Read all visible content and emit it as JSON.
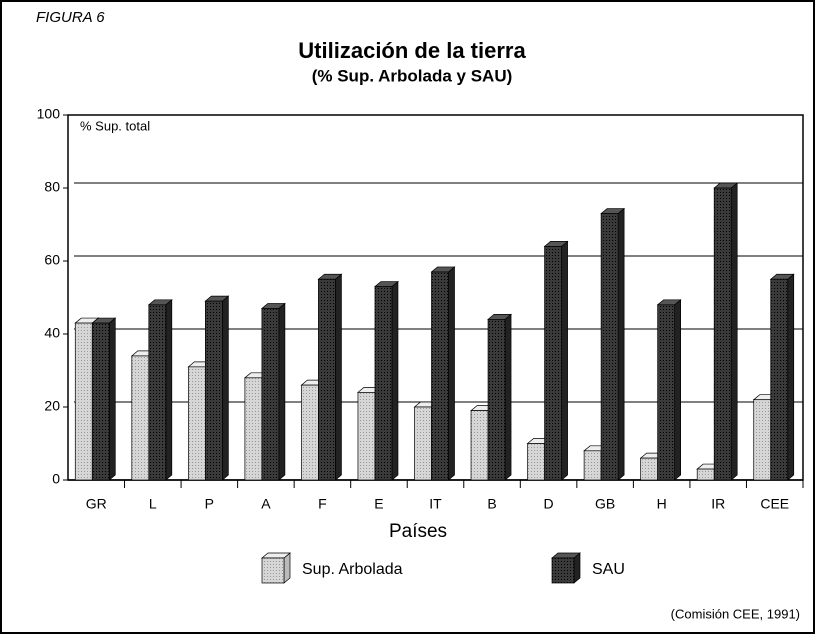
{
  "chart_data": {
    "type": "bar",
    "label": "FIGURA 6",
    "title": "Utilización de la tierra",
    "subtitle": "(% Sup. Arbolada y SAU)",
    "y_axis_label": "% Sup. total",
    "x_axis_label": "Países",
    "source": "(Comisión CEE, 1991)",
    "categories": [
      "GR",
      "L",
      "P",
      "A",
      "F",
      "E",
      "IT",
      "B",
      "D",
      "GB",
      "H",
      "IR",
      "CEE"
    ],
    "series": [
      {
        "name": "Sup. Arbolada",
        "color": "#d6d6d6",
        "values": [
          43,
          34,
          31,
          28,
          26,
          24,
          20,
          19,
          10,
          8,
          6,
          3,
          22
        ]
      },
      {
        "name": "SAU",
        "color": "#3a3a3a",
        "values": [
          43,
          48,
          49,
          47,
          55,
          53,
          57,
          44,
          64,
          73,
          48,
          80,
          55
        ]
      }
    ],
    "ylim": [
      0,
      100
    ],
    "yticks": [
      0,
      20,
      40,
      60,
      80,
      100
    ],
    "grid": true
  }
}
